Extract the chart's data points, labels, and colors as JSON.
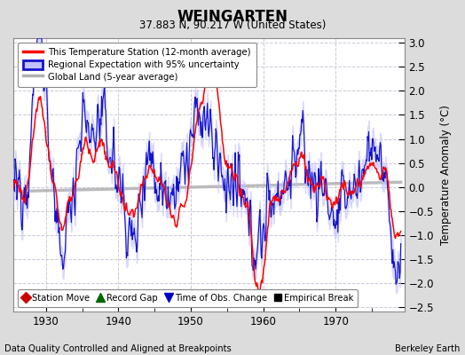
{
  "title": "WEINGARTEN",
  "subtitle": "37.883 N, 90.217 W (United States)",
  "ylabel": "Temperature Anomaly (°C)",
  "xlabel_bottom_left": "Data Quality Controlled and Aligned at Breakpoints",
  "xlabel_bottom_right": "Berkeley Earth",
  "xlim": [
    1925.5,
    1979.5
  ],
  "ylim": [
    -2.6,
    3.1
  ],
  "yticks": [
    -2.5,
    -2,
    -1.5,
    -1,
    -0.5,
    0,
    0.5,
    1,
    1.5,
    2,
    2.5,
    3
  ],
  "xticks": [
    1930,
    1940,
    1950,
    1960,
    1970
  ],
  "fig_bg_color": "#dcdcdc",
  "plot_bg_color": "#ffffff",
  "grid_color": "#c8c8d8",
  "red_color": "#ff0000",
  "blue_color": "#1414cc",
  "blue_fill_color": "#c0c0ff",
  "gray_color": "#b0b0b0",
  "legend1_items": [
    {
      "label": "This Temperature Station (12-month average)",
      "color": "#ff0000",
      "lw": 2
    },
    {
      "label": "Regional Expectation with 95% uncertainty",
      "color": "#1414cc",
      "lw": 2,
      "fill": "#c0c0ff"
    },
    {
      "label": "Global Land (5-year average)",
      "color": "#b0b0b0",
      "lw": 2
    }
  ],
  "legend2_items": [
    {
      "label": "Station Move",
      "color": "#cc0000",
      "marker": "D"
    },
    {
      "label": "Record Gap",
      "color": "#006600",
      "marker": "^"
    },
    {
      "label": "Time of Obs. Change",
      "color": "#0000cc",
      "marker": "v"
    },
    {
      "label": "Empirical Break",
      "color": "#000000",
      "marker": "s"
    }
  ],
  "seed": 12345,
  "n_months": 660,
  "start_year": 1924.0
}
